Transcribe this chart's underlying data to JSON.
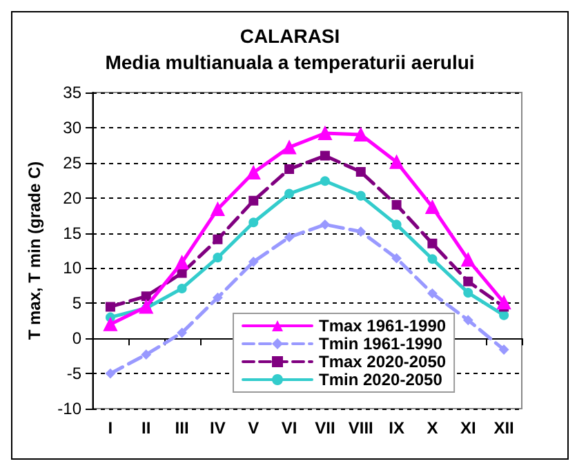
{
  "chart_data": {
    "type": "line",
    "title": "CALARASI",
    "subtitle": "Media multianuala a temperaturii aerului",
    "ylabel": "T max, T min (grade C)",
    "categories": [
      "I",
      "II",
      "III",
      "IV",
      "V",
      "VI",
      "VII",
      "VIII",
      "IX",
      "X",
      "XI",
      "XII"
    ],
    "series": [
      {
        "name": "Tmax 1961-1990",
        "color": "#ff00ff",
        "marker": "triangle",
        "line_style": "solid",
        "values": [
          2.0,
          4.5,
          10.8,
          18.4,
          23.6,
          27.2,
          29.2,
          29.0,
          25.1,
          18.7,
          11.2,
          5.1
        ]
      },
      {
        "name": "Tmin 1961-1990",
        "color": "#9999ff",
        "marker": "diamond",
        "line_style": "dashed",
        "values": [
          -5.0,
          -2.3,
          0.8,
          5.8,
          10.9,
          14.4,
          16.2,
          15.2,
          11.4,
          6.4,
          2.6,
          -1.6
        ]
      },
      {
        "name": "Tmax 2020-2050",
        "color": "#800080",
        "marker": "square",
        "line_style": "dashed",
        "values": [
          4.5,
          6.0,
          9.3,
          14.1,
          19.6,
          24.1,
          26.0,
          23.7,
          19.0,
          13.5,
          8.1,
          4.5
        ]
      },
      {
        "name": "Tmin 2020-2050",
        "color": "#33cccc",
        "marker": "circle",
        "line_style": "solid",
        "values": [
          3.0,
          4.3,
          7.1,
          11.5,
          16.5,
          20.6,
          22.4,
          20.3,
          16.2,
          11.3,
          6.5,
          3.3
        ]
      }
    ],
    "ylim": [
      -10,
      35
    ],
    "yticks": [
      -10,
      -5,
      0,
      5,
      10,
      15,
      20,
      25,
      30,
      35
    ],
    "grid": "y",
    "legend": "bottom"
  }
}
